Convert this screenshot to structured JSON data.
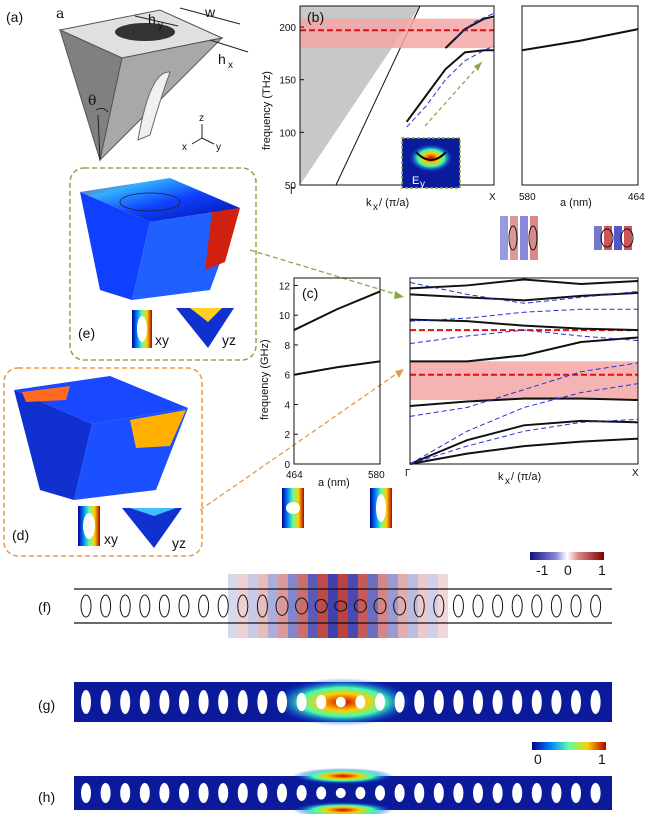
{
  "panels": {
    "a": {
      "label": "(a)",
      "sym_a": "a",
      "sym_w": "w",
      "sym_hy": "h",
      "sub_y": "y",
      "sym_hx": "h",
      "sub_x": "x",
      "sym_theta": "θ",
      "axis_z": "z",
      "axis_x": "x",
      "axis_y": "y"
    },
    "b": {
      "label": "(b)",
      "inset_label": "E",
      "inset_sub": "y",
      "xlabel_k": "k",
      "xlabel_sub": "x",
      "xlabel_rest": " / (π/a)",
      "ylabel": "frequency (THz)",
      "right_xlabel": "a (nm)",
      "tick_gamma": "Γ",
      "tick_X": "X",
      "tick_580": "580",
      "tick_464": "464"
    },
    "c": {
      "label": "(c)",
      "ylabel": "frequency (GHz)",
      "left_xlabel": "a (nm)",
      "tick_464": "464",
      "tick_580": "580",
      "xlabel_k": "k",
      "xlabel_sub": "x",
      "xlabel_rest": " / (π/a)",
      "tick_gamma": "Γ",
      "tick_X": "X"
    },
    "d": {
      "label": "(d)",
      "xy": "xy",
      "yz": "yz"
    },
    "e": {
      "label": "(e)",
      "xy": "xy",
      "yz": "yz"
    },
    "f": {
      "label": "(f)",
      "cb_min": "-1",
      "cb_mid": "0",
      "cb_max": "1"
    },
    "g": {
      "label": "(g)"
    },
    "h": {
      "label": "(h)",
      "cb_min": "0",
      "cb_max": "1"
    }
  },
  "colors": {
    "band": "#111111",
    "dashed_blue": "#2233cc",
    "dashed_red": "#dd1111",
    "gap_fill": "#f4a6a6",
    "light_cone": "#c8c8c8",
    "green_box": "#8aa84a",
    "orange_box": "#e89a4a",
    "wg_blue": "#0a1a9a"
  },
  "chart_data": [
    {
      "type": "line",
      "panel": "b",
      "ylim": [
        50,
        220
      ],
      "yticks": [
        50,
        100,
        150,
        200
      ],
      "x_ticklabels": [
        "Γ",
        "X"
      ],
      "series": [
        {
          "style": "solid",
          "x": [
            0.55,
            0.65,
            0.75,
            0.85,
            0.95,
            1.0
          ],
          "y": [
            110,
            135,
            160,
            176,
            178,
            178
          ]
        },
        {
          "style": "solid",
          "x": [
            0.75,
            0.85,
            0.95,
            1.0
          ],
          "y": [
            180,
            198,
            208,
            210
          ]
        },
        {
          "style": "dashed",
          "x": [
            0.55,
            0.65,
            0.75,
            0.85,
            0.95,
            1.0
          ],
          "y": [
            105,
            125,
            150,
            168,
            178,
            182
          ]
        },
        {
          "style": "dashed",
          "x": [
            0.8,
            0.9,
            1.0
          ],
          "y": [
            190,
            205,
            213
          ]
        }
      ],
      "hline": 197,
      "gap": [
        180,
        208
      ]
    },
    {
      "type": "line",
      "panel": "b-right",
      "xticks": [
        580,
        464
      ],
      "series": [
        {
          "x": [
            580,
            522,
            464
          ],
          "y": [
            178,
            187,
            198
          ]
        }
      ]
    },
    {
      "type": "line",
      "panel": "c-left",
      "ylim": [
        0,
        12.5
      ],
      "yticks": [
        0,
        2,
        4,
        6,
        8,
        10,
        12
      ],
      "xticks": [
        464,
        580
      ],
      "series": [
        {
          "x": [
            464,
            522,
            580
          ],
          "y": [
            9.0,
            10.4,
            11.6
          ]
        },
        {
          "x": [
            464,
            522,
            580
          ],
          "y": [
            6.0,
            6.5,
            6.9
          ]
        }
      ]
    },
    {
      "type": "line",
      "panel": "c",
      "ylim": [
        0,
        12.5
      ],
      "yticks": [
        0,
        2,
        4,
        6,
        8,
        10,
        12
      ],
      "x_ticklabels": [
        "Γ",
        "X"
      ],
      "hlines": [
        9.0,
        6.0
      ],
      "gap": [
        4.3,
        6.9
      ],
      "series": [
        {
          "style": "solid",
          "y": [
            0,
            0.7,
            1.2,
            1.5,
            1.7
          ]
        },
        {
          "style": "solid",
          "y": [
            0,
            1.6,
            2.6,
            2.9,
            2.8
          ]
        },
        {
          "style": "solid",
          "y": [
            3.9,
            4.2,
            4.4,
            4.4,
            4.3
          ]
        },
        {
          "style": "solid",
          "y": [
            6.9,
            6.9,
            7.3,
            8.2,
            8.5
          ]
        },
        {
          "style": "solid",
          "y": [
            9.7,
            9.6,
            9.3,
            9.1,
            9.0
          ]
        },
        {
          "style": "solid",
          "y": [
            11.4,
            11.2,
            11.0,
            11.3,
            11.5
          ]
        },
        {
          "style": "solid",
          "y": [
            11.8,
            12.0,
            12.4,
            12.1,
            12.3
          ]
        },
        {
          "style": "dashed",
          "y": [
            0,
            1.2,
            2.2,
            2.8,
            3.0
          ]
        },
        {
          "style": "dashed",
          "y": [
            0,
            2.2,
            3.8,
            4.8,
            5.4
          ]
        },
        {
          "style": "dashed",
          "y": [
            3.2,
            3.8,
            5.0,
            6.2,
            6.8
          ]
        },
        {
          "style": "dashed",
          "y": [
            8.1,
            8.6,
            9.0,
            8.6,
            8.3
          ]
        },
        {
          "style": "dashed",
          "y": [
            9.6,
            9.8,
            10.2,
            10.4,
            10.4
          ]
        },
        {
          "style": "dashed",
          "y": [
            12.2,
            11.4,
            10.8,
            11.2,
            11.6
          ]
        }
      ]
    }
  ]
}
